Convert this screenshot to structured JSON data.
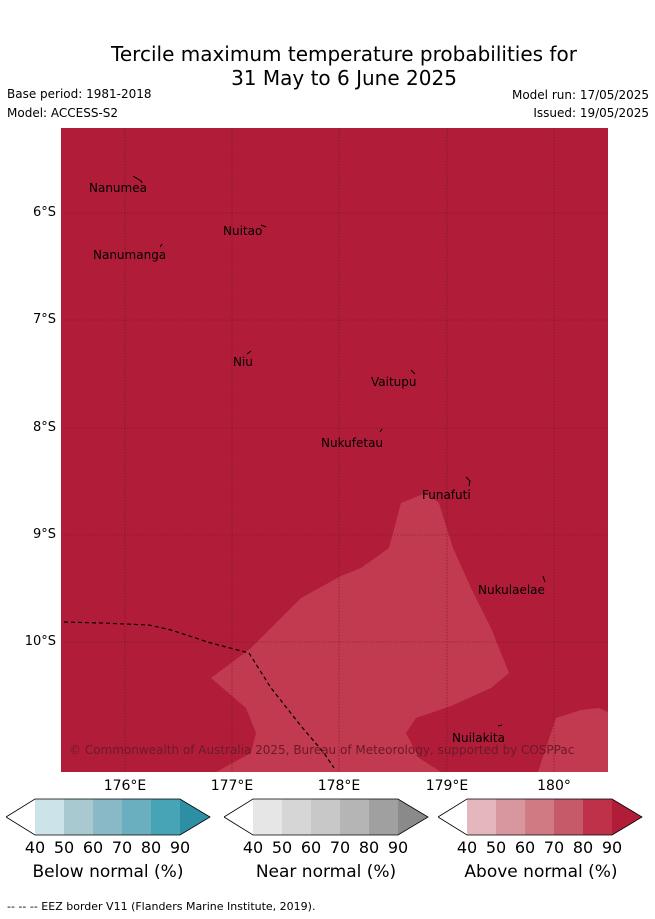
{
  "title": {
    "line1": "Tercile maximum temperature probabilities for",
    "line2": "31 May to 6 June 2025"
  },
  "meta": {
    "base_period": "Base period: 1981-2018",
    "model": "Model: ACCESS-S2",
    "model_run": "Model run: 17/05/2025",
    "issued": "Issued: 19/05/2025"
  },
  "map": {
    "background_color": "#b11d39",
    "lighter_region_color": "#c23a4f",
    "copyright": "© Commonwealth of Australia 2025, Bureau of Meteorology, supported by COSPPac",
    "places": [
      {
        "name": "Nanumea"
      },
      {
        "name": "Nuitao"
      },
      {
        "name": "Nanumanga"
      },
      {
        "name": "Niu"
      },
      {
        "name": "Vaitupu"
      },
      {
        "name": "Nukufetau"
      },
      {
        "name": "Funafuti"
      },
      {
        "name": "Nukulaelae"
      },
      {
        "name": "Nuilakita"
      }
    ],
    "lat_labels": [
      "6°S",
      "7°S",
      "8°S",
      "9°S",
      "10°S"
    ],
    "lon_labels": [
      "176°E",
      "177°E",
      "178°E",
      "179°E",
      "180°"
    ]
  },
  "legends": [
    {
      "title": "Below normal (%)",
      "ticks": [
        "40",
        "50",
        "60",
        "70",
        "80",
        "90"
      ],
      "colors": [
        "#ffffff",
        "#cce3ea",
        "#a9c9d0",
        "#89b9c6",
        "#6aafc0",
        "#47a3b6",
        "#2d8fa3"
      ]
    },
    {
      "title": "Near normal (%)",
      "ticks": [
        "40",
        "50",
        "60",
        "70",
        "80",
        "90"
      ],
      "colors": [
        "#ffffff",
        "#e6e6e6",
        "#d6d6d6",
        "#c8c8c8",
        "#b5b5b5",
        "#a0a0a0",
        "#8a8a8a"
      ]
    },
    {
      "title": "Above normal (%)",
      "ticks": [
        "40",
        "50",
        "60",
        "70",
        "80",
        "90"
      ],
      "colors": [
        "#ffffff",
        "#e3b7bd",
        "#d8969e",
        "#d07a84",
        "#c75a68",
        "#bf3049",
        "#b11d39"
      ]
    }
  ],
  "footer": "--  --  -- EEZ border V11 (Flanders Marine Institute, 2019)."
}
